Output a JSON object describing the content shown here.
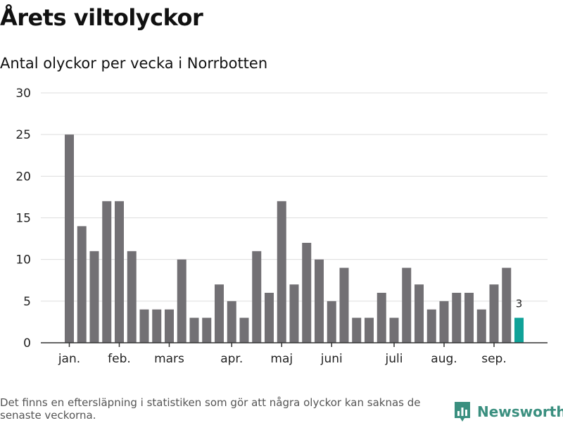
{
  "title": "Årets viltolyckor",
  "subtitle": "Antal olyckor per vecka i Norrbotten",
  "footnote": "Det finns en eftersläpning i statistiken som gör att några olyckor kan saknas de senaste veckorna.",
  "brand": {
    "name": "Newsworthy",
    "color": "#3a8f7f"
  },
  "colors": {
    "bar": "#727074",
    "highlight": "#10a298",
    "grid": "#dddddd",
    "axis": "#333333"
  },
  "chart_data": {
    "type": "bar",
    "values": [
      25,
      14,
      11,
      17,
      17,
      11,
      4,
      4,
      4,
      10,
      3,
      3,
      7,
      5,
      3,
      11,
      6,
      17,
      7,
      12,
      10,
      5,
      9,
      3,
      3,
      6,
      3,
      9,
      7,
      4,
      5,
      6,
      6,
      4,
      7,
      9,
      3
    ],
    "highlight_last": true,
    "last_label": "3",
    "ylim": [
      0,
      30
    ],
    "yticks": [
      0,
      5,
      10,
      15,
      20,
      25,
      30
    ],
    "month_labels": [
      {
        "label": "jan.",
        "bar": 0
      },
      {
        "label": "feb.",
        "bar": 4
      },
      {
        "label": "mars",
        "bar": 8
      },
      {
        "label": "apr.",
        "bar": 13
      },
      {
        "label": "maj",
        "bar": 17
      },
      {
        "label": "juni",
        "bar": 21
      },
      {
        "label": "juli",
        "bar": 26
      },
      {
        "label": "aug.",
        "bar": 30
      },
      {
        "label": "sep.",
        "bar": 34
      }
    ],
    "grid": true,
    "legend": "none"
  }
}
